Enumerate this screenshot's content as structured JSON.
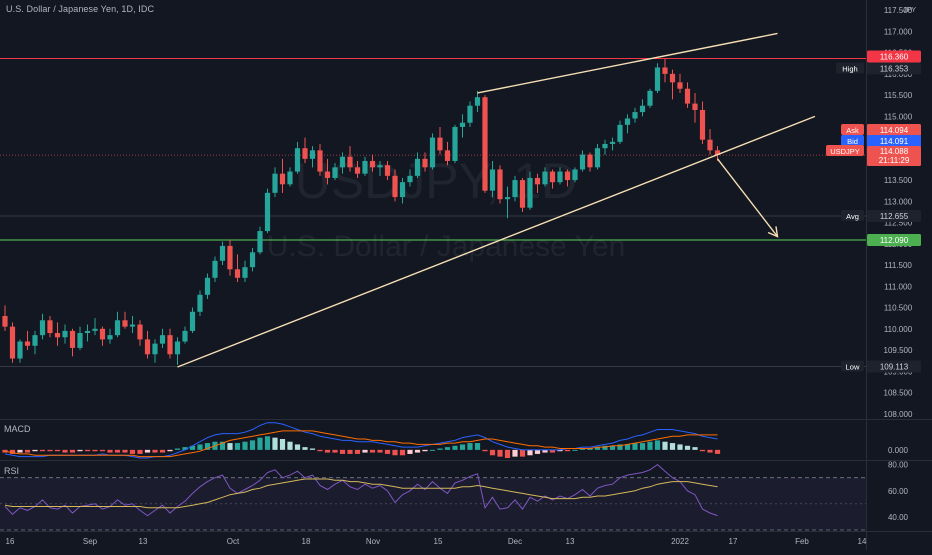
{
  "chart_data": {
    "type": "candlestick",
    "symbol_title": "U.S. Dollar / Japanese Yen, 1D, IDC",
    "watermark": {
      "symbol": "USDJPY, 1D",
      "name": "U.S. Dollar / Japanese Yen"
    },
    "colors": {
      "background": "#131722",
      "up": "#26a69a",
      "down": "#ef5350",
      "trendline": "#f5deb3",
      "resistance": "#f23645",
      "support": "#4caf50",
      "macd": "#2962ff",
      "signal": "#ff6d00",
      "rsi": "#7e57c2",
      "rsi_ma": "#d4b85a"
    },
    "x_labels": [
      "16",
      "Sep",
      "13",
      "Oct",
      "18",
      "Nov",
      "15",
      "Dec",
      "13",
      "2022",
      "17",
      "Feb",
      "14"
    ],
    "price_axis": {
      "ylim": [
        107.9,
        117.55
      ],
      "ticks": [
        "108.000",
        "108.500",
        "109.000",
        "109.500",
        "110.000",
        "110.500",
        "111.000",
        "111.500",
        "112.000",
        "112.500",
        "113.000",
        "113.500",
        "114.000",
        "114.500",
        "115.000",
        "115.500",
        "116.000",
        "116.500",
        "117.000",
        "117.500"
      ],
      "currency": "JPY"
    },
    "price_tags": {
      "high": {
        "label": "High",
        "value": "116.353"
      },
      "resistance": {
        "value": "116.360"
      },
      "ask": {
        "label": "Ask",
        "value": "114.094"
      },
      "bid": {
        "label": "Bid",
        "value": "114.091"
      },
      "last": {
        "label": "USDJPY",
        "value": "114.088",
        "countdown": "21:11:29"
      },
      "avg": {
        "label": "Avg",
        "value": "112.655"
      },
      "support": {
        "value": "112.090"
      },
      "low": {
        "label": "Low",
        "value": "109.113"
      }
    },
    "levels": {
      "resistance": 116.36,
      "support": 112.09,
      "high": 116.353,
      "low": 109.113,
      "avg": 112.655,
      "last": 114.088
    },
    "trendlines": [
      {
        "name": "lower-trendline",
        "from": [
          23,
          109.1
        ],
        "to": [
          108,
          115.0
        ]
      },
      {
        "name": "upper-trendline",
        "from": [
          63,
          115.55
        ],
        "to": [
          103,
          116.95
        ]
      },
      {
        "name": "projection-arrow",
        "from": [
          95,
          114.0
        ],
        "to": [
          103,
          112.17
        ]
      }
    ],
    "candles": [
      [
        110.3,
        110.55,
        109.95,
        110.05
      ],
      [
        110.05,
        110.15,
        109.2,
        109.3
      ],
      [
        109.3,
        109.75,
        109.2,
        109.7
      ],
      [
        109.7,
        109.95,
        109.5,
        109.6
      ],
      [
        109.6,
        109.95,
        109.4,
        109.85
      ],
      [
        109.85,
        110.35,
        109.75,
        110.2
      ],
      [
        110.2,
        110.3,
        109.8,
        109.9
      ],
      [
        109.9,
        110.15,
        109.6,
        109.8
      ],
      [
        109.8,
        110.1,
        109.65,
        109.95
      ],
      [
        109.95,
        110.0,
        109.35,
        109.55
      ],
      [
        109.55,
        110.05,
        109.5,
        109.9
      ],
      [
        109.9,
        110.1,
        109.7,
        109.95
      ],
      [
        109.95,
        110.25,
        109.85,
        110.0
      ],
      [
        110.0,
        110.05,
        109.6,
        109.75
      ],
      [
        109.75,
        110.0,
        109.65,
        109.85
      ],
      [
        109.85,
        110.4,
        109.8,
        110.2
      ],
      [
        110.2,
        110.4,
        110.0,
        110.05
      ],
      [
        110.05,
        110.3,
        109.9,
        110.1
      ],
      [
        110.1,
        110.2,
        109.6,
        109.75
      ],
      [
        109.75,
        109.95,
        109.3,
        109.4
      ],
      [
        109.4,
        109.75,
        109.2,
        109.65
      ],
      [
        109.65,
        110.0,
        109.55,
        109.85
      ],
      [
        109.85,
        110.0,
        109.3,
        109.4
      ],
      [
        109.4,
        109.8,
        109.15,
        109.7
      ],
      [
        109.7,
        110.05,
        109.65,
        109.95
      ],
      [
        109.95,
        110.5,
        109.9,
        110.4
      ],
      [
        110.4,
        110.9,
        110.3,
        110.8
      ],
      [
        110.8,
        111.3,
        110.7,
        111.2
      ],
      [
        111.2,
        111.7,
        111.1,
        111.6
      ],
      [
        111.6,
        112.05,
        111.5,
        111.95
      ],
      [
        111.95,
        112.1,
        111.25,
        111.4
      ],
      [
        111.4,
        111.75,
        111.1,
        111.2
      ],
      [
        111.2,
        111.6,
        111.1,
        111.45
      ],
      [
        111.45,
        111.9,
        111.35,
        111.8
      ],
      [
        111.8,
        112.4,
        111.75,
        112.3
      ],
      [
        112.3,
        113.3,
        112.25,
        113.2
      ],
      [
        113.2,
        113.8,
        113.1,
        113.65
      ],
      [
        113.65,
        114.0,
        113.2,
        113.4
      ],
      [
        113.4,
        113.8,
        113.35,
        113.7
      ],
      [
        113.7,
        114.4,
        113.65,
        114.25
      ],
      [
        114.25,
        114.5,
        113.9,
        114.0
      ],
      [
        114.0,
        114.3,
        113.8,
        114.2
      ],
      [
        114.2,
        114.35,
        113.6,
        113.7
      ],
      [
        113.7,
        114.0,
        113.4,
        113.55
      ],
      [
        113.55,
        113.9,
        113.5,
        113.8
      ],
      [
        113.8,
        114.15,
        113.65,
        114.05
      ],
      [
        114.05,
        114.3,
        113.7,
        113.8
      ],
      [
        113.8,
        113.95,
        113.55,
        113.65
      ],
      [
        113.65,
        114.05,
        113.6,
        113.95
      ],
      [
        113.95,
        114.1,
        113.7,
        113.8
      ],
      [
        113.8,
        113.95,
        113.6,
        113.85
      ],
      [
        113.85,
        113.95,
        113.5,
        113.6
      ],
      [
        113.6,
        113.75,
        113.0,
        113.1
      ],
      [
        113.1,
        113.55,
        112.95,
        113.45
      ],
      [
        113.45,
        113.75,
        113.35,
        113.6
      ],
      [
        113.6,
        114.15,
        113.55,
        114.0
      ],
      [
        114.0,
        114.15,
        113.7,
        113.8
      ],
      [
        113.8,
        114.6,
        113.75,
        114.5
      ],
      [
        114.5,
        114.75,
        114.1,
        114.2
      ],
      [
        114.2,
        114.4,
        113.85,
        113.95
      ],
      [
        113.95,
        114.8,
        113.9,
        114.75
      ],
      [
        114.75,
        115.05,
        114.5,
        114.85
      ],
      [
        114.85,
        115.35,
        114.75,
        115.25
      ],
      [
        115.25,
        115.6,
        115.1,
        115.45
      ],
      [
        115.45,
        115.5,
        113.2,
        113.25
      ],
      [
        113.25,
        113.95,
        113.1,
        113.75
      ],
      [
        113.75,
        113.85,
        112.95,
        113.05
      ],
      [
        113.05,
        113.35,
        112.6,
        113.1
      ],
      [
        113.1,
        113.6,
        113.0,
        113.5
      ],
      [
        113.5,
        113.55,
        112.75,
        112.85
      ],
      [
        112.85,
        113.7,
        112.8,
        113.55
      ],
      [
        113.55,
        113.65,
        113.2,
        113.4
      ],
      [
        113.4,
        113.8,
        113.35,
        113.7
      ],
      [
        113.7,
        113.75,
        113.3,
        113.45
      ],
      [
        113.45,
        113.8,
        113.4,
        113.7
      ],
      [
        113.7,
        113.75,
        113.35,
        113.5
      ],
      [
        113.5,
        113.8,
        113.45,
        113.75
      ],
      [
        113.75,
        114.2,
        113.7,
        114.1
      ],
      [
        114.1,
        114.15,
        113.7,
        113.8
      ],
      [
        113.8,
        114.35,
        113.75,
        114.25
      ],
      [
        114.25,
        114.45,
        114.1,
        114.35
      ],
      [
        114.35,
        114.5,
        114.2,
        114.4
      ],
      [
        114.4,
        114.9,
        114.35,
        114.8
      ],
      [
        114.8,
        115.05,
        114.6,
        114.95
      ],
      [
        114.95,
        115.2,
        114.85,
        115.1
      ],
      [
        115.1,
        115.4,
        115.0,
        115.25
      ],
      [
        115.25,
        115.65,
        115.2,
        115.6
      ],
      [
        115.6,
        116.25,
        115.55,
        116.15
      ],
      [
        116.15,
        116.35,
        115.8,
        116.0
      ],
      [
        116.0,
        116.1,
        115.4,
        115.8
      ],
      [
        115.8,
        116.0,
        115.55,
        115.65
      ],
      [
        115.65,
        115.8,
        115.2,
        115.3
      ],
      [
        115.3,
        115.55,
        114.85,
        115.15
      ],
      [
        115.15,
        115.35,
        114.35,
        114.45
      ],
      [
        114.45,
        114.7,
        114.1,
        114.2
      ],
      [
        114.2,
        114.3,
        113.95,
        114.09
      ]
    ],
    "macd": {
      "ylim": [
        -0.06,
        0.22
      ],
      "ticks": [
        "0.000"
      ],
      "histogram": [
        -0.02,
        -0.03,
        -0.02,
        -0.02,
        -0.01,
        -0.01,
        -0.01,
        -0.01,
        -0.02,
        -0.02,
        -0.01,
        -0.01,
        -0.01,
        -0.01,
        -0.02,
        -0.02,
        -0.02,
        -0.03,
        -0.03,
        -0.02,
        -0.02,
        -0.02,
        -0.01,
        0.01,
        0.02,
        0.03,
        0.04,
        0.05,
        0.06,
        0.06,
        0.05,
        0.05,
        0.06,
        0.07,
        0.09,
        0.1,
        0.09,
        0.08,
        0.06,
        0.04,
        0.02,
        0.01,
        -0.01,
        -0.02,
        -0.02,
        -0.03,
        -0.03,
        -0.03,
        -0.02,
        -0.02,
        -0.02,
        -0.03,
        -0.04,
        -0.04,
        -0.03,
        -0.02,
        -0.01,
        0.0,
        0.01,
        0.02,
        0.03,
        0.04,
        0.05,
        0.05,
        -0.01,
        -0.04,
        -0.05,
        -0.06,
        -0.05,
        -0.05,
        -0.04,
        -0.03,
        -0.02,
        -0.02,
        -0.01,
        -0.01,
        0.0,
        0.01,
        0.01,
        0.02,
        0.03,
        0.03,
        0.04,
        0.04,
        0.05,
        0.05,
        0.06,
        0.07,
        0.06,
        0.05,
        0.04,
        0.03,
        0.02,
        -0.01,
        -0.02,
        -0.03
      ],
      "macd_line": [
        -0.03,
        -0.04,
        -0.05,
        -0.05,
        -0.05,
        -0.05,
        -0.04,
        -0.04,
        -0.04,
        -0.04,
        -0.04,
        -0.04,
        -0.04,
        -0.03,
        -0.04,
        -0.04,
        -0.04,
        -0.05,
        -0.06,
        -0.06,
        -0.05,
        -0.05,
        -0.04,
        -0.02,
        0.0,
        0.03,
        0.06,
        0.09,
        0.11,
        0.12,
        0.12,
        0.12,
        0.13,
        0.15,
        0.18,
        0.2,
        0.2,
        0.19,
        0.17,
        0.15,
        0.13,
        0.12,
        0.1,
        0.09,
        0.08,
        0.07,
        0.07,
        0.06,
        0.06,
        0.06,
        0.05,
        0.04,
        0.03,
        0.02,
        0.02,
        0.02,
        0.03,
        0.04,
        0.05,
        0.06,
        0.07,
        0.09,
        0.1,
        0.11,
        0.09,
        0.06,
        0.04,
        0.02,
        0.01,
        0.0,
        0.0,
        0.0,
        0.0,
        0.0,
        0.0,
        0.01,
        0.01,
        0.02,
        0.02,
        0.03,
        0.04,
        0.05,
        0.07,
        0.08,
        0.1,
        0.11,
        0.13,
        0.15,
        0.15,
        0.15,
        0.14,
        0.13,
        0.12,
        0.1,
        0.09,
        0.08
      ],
      "signal_line": [
        -0.01,
        -0.02,
        -0.03,
        -0.03,
        -0.04,
        -0.04,
        -0.04,
        -0.04,
        -0.04,
        -0.04,
        -0.04,
        -0.04,
        -0.04,
        -0.04,
        -0.04,
        -0.04,
        -0.04,
        -0.04,
        -0.05,
        -0.05,
        -0.05,
        -0.05,
        -0.05,
        -0.04,
        -0.03,
        -0.02,
        -0.01,
        0.01,
        0.03,
        0.05,
        0.07,
        0.08,
        0.09,
        0.1,
        0.11,
        0.12,
        0.13,
        0.14,
        0.14,
        0.14,
        0.14,
        0.14,
        0.13,
        0.12,
        0.11,
        0.1,
        0.09,
        0.08,
        0.08,
        0.07,
        0.07,
        0.06,
        0.06,
        0.05,
        0.05,
        0.04,
        0.04,
        0.04,
        0.04,
        0.05,
        0.05,
        0.06,
        0.06,
        0.07,
        0.08,
        0.08,
        0.07,
        0.06,
        0.05,
        0.04,
        0.03,
        0.03,
        0.02,
        0.02,
        0.01,
        0.01,
        0.01,
        0.01,
        0.01,
        0.02,
        0.02,
        0.03,
        0.03,
        0.04,
        0.05,
        0.06,
        0.07,
        0.08,
        0.09,
        0.1,
        0.1,
        0.11,
        0.11,
        0.11,
        0.11,
        0.11
      ]
    },
    "rsi": {
      "ylim": [
        30,
        82
      ],
      "ticks": [
        "40.00",
        "60.00",
        "80.00"
      ],
      "bands": [
        30,
        70
      ],
      "rsi": [
        48,
        42,
        47,
        45,
        48,
        53,
        47,
        46,
        49,
        43,
        48,
        49,
        50,
        46,
        48,
        53,
        49,
        50,
        45,
        41,
        45,
        49,
        43,
        48,
        52,
        58,
        63,
        67,
        70,
        72,
        62,
        58,
        61,
        64,
        68,
        74,
        76,
        70,
        72,
        75,
        70,
        72,
        64,
        61,
        65,
        68,
        63,
        61,
        65,
        62,
        64,
        60,
        51,
        57,
        60,
        65,
        61,
        67,
        62,
        58,
        66,
        68,
        71,
        73,
        47,
        55,
        46,
        47,
        53,
        46,
        55,
        52,
        56,
        53,
        56,
        54,
        57,
        61,
        56,
        62,
        64,
        65,
        70,
        72,
        73,
        74,
        76,
        80,
        75,
        70,
        67,
        60,
        57,
        46,
        43,
        41
      ],
      "rsi_ma": [
        49,
        48,
        48,
        48,
        48,
        48,
        48,
        48,
        48,
        48,
        48,
        48,
        48,
        48,
        48,
        48,
        48,
        48,
        48,
        47,
        47,
        47,
        47,
        47,
        48,
        49,
        50,
        51,
        53,
        55,
        57,
        58,
        59,
        61,
        62,
        64,
        65,
        66,
        67,
        68,
        69,
        69,
        69,
        69,
        68,
        68,
        67,
        67,
        66,
        65,
        65,
        64,
        63,
        62,
        62,
        62,
        62,
        62,
        62,
        62,
        62,
        63,
        63,
        64,
        63,
        62,
        61,
        60,
        59,
        58,
        57,
        56,
        55,
        54,
        54,
        54,
        54,
        55,
        55,
        56,
        56,
        57,
        58,
        59,
        60,
        62,
        63,
        65,
        66,
        67,
        67,
        67,
        66,
        65,
        64,
        63
      ]
    }
  }
}
